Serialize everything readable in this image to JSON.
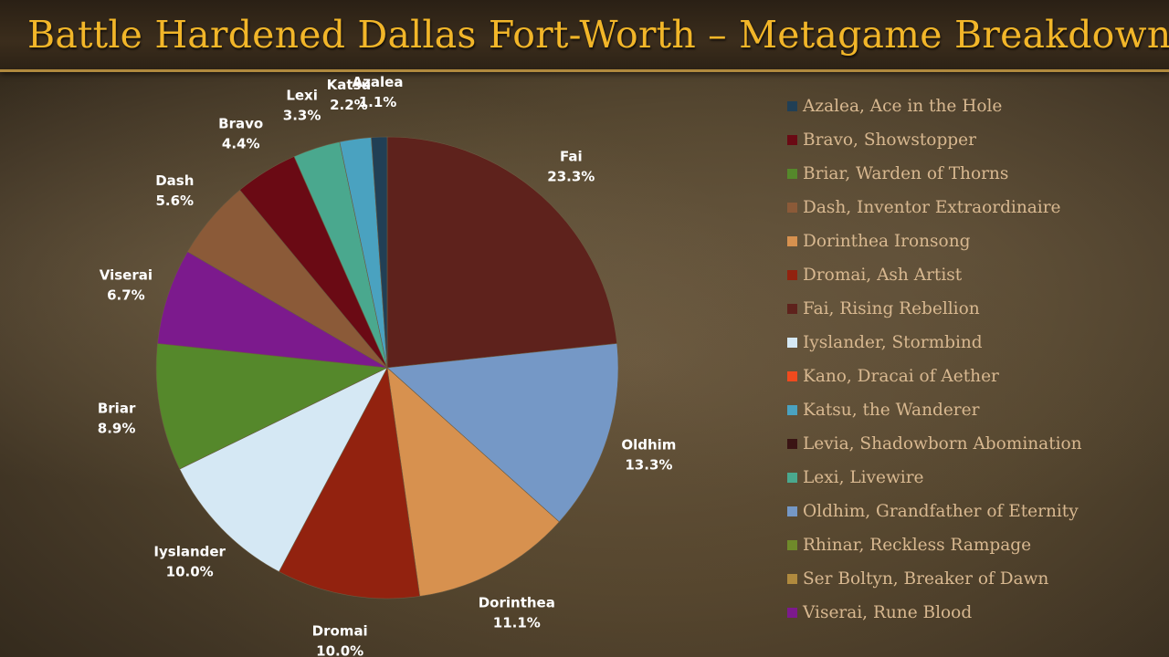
{
  "title": "Battle Hardened Dallas Fort-Worth – Metagame Breakdown",
  "chart_data": {
    "type": "pie",
    "title": "Battle Hardened Dallas Fort-Worth – Metagame Breakdown",
    "unit": "%",
    "start_angle_deg": 0,
    "direction": "clockwise",
    "legend_position": "right",
    "slices": [
      {
        "name": "Fai",
        "value": 23.3,
        "label": "23.3%",
        "color": "#5e221c"
      },
      {
        "name": "Oldhim",
        "value": 13.3,
        "label": "13.3%",
        "color": "#7598c6"
      },
      {
        "name": "Dorinthea",
        "value": 11.1,
        "label": "11.1%",
        "color": "#d7914f"
      },
      {
        "name": "Dromai",
        "value": 10.0,
        "label": "10.0%",
        "color": "#92220f"
      },
      {
        "name": "Iyslander",
        "value": 10.0,
        "label": "10.0%",
        "color": "#d5e8f4"
      },
      {
        "name": "Briar",
        "value": 8.9,
        "label": "8.9%",
        "color": "#55882b"
      },
      {
        "name": "Viserai",
        "value": 6.7,
        "label": "6.7%",
        "color": "#7c1a8d"
      },
      {
        "name": "Dash",
        "value": 5.6,
        "label": "5.6%",
        "color": "#8b5a38"
      },
      {
        "name": "Bravo",
        "value": 4.4,
        "label": "4.4%",
        "color": "#6a0a14"
      },
      {
        "name": "Lexi",
        "value": 3.3,
        "label": "3.3%",
        "color": "#4aa88e"
      },
      {
        "name": "Katsu",
        "value": 2.2,
        "label": "2.2%",
        "color": "#4aa2c0"
      },
      {
        "name": "Azalea",
        "value": 1.1,
        "label": "1.1%",
        "color": "#213f55"
      }
    ],
    "legend": [
      {
        "label": "Azalea, Ace in the Hole",
        "color": "#213f55"
      },
      {
        "label": "Bravo, Showstopper",
        "color": "#6a0a14"
      },
      {
        "label": "Briar, Warden of Thorns",
        "color": "#55882b"
      },
      {
        "label": "Dash, Inventor Extraordinaire",
        "color": "#8b5a38"
      },
      {
        "label": "Dorinthea Ironsong",
        "color": "#d7914f"
      },
      {
        "label": "Dromai, Ash Artist",
        "color": "#92220f"
      },
      {
        "label": "Fai, Rising Rebellion",
        "color": "#5e221c"
      },
      {
        "label": "Iyslander, Stormbind",
        "color": "#d5e8f4"
      },
      {
        "label": "Kano, Dracai of Aether",
        "color": "#f04a1e"
      },
      {
        "label": "Katsu, the Wanderer",
        "color": "#4aa2c0"
      },
      {
        "label": "Levia, Shadowborn Abomination",
        "color": "#3a1414"
      },
      {
        "label": "Lexi, Livewire",
        "color": "#4aa88e"
      },
      {
        "label": "Oldhim, Grandfather of Eternity",
        "color": "#7598c6"
      },
      {
        "label": "Rhinar, Reckless Rampage",
        "color": "#6f8a2a"
      },
      {
        "label": "Ser Boltyn, Breaker of Dawn",
        "color": "#b08a3e"
      },
      {
        "label": "Viserai, Rune Blood",
        "color": "#7c1a8d"
      }
    ]
  }
}
